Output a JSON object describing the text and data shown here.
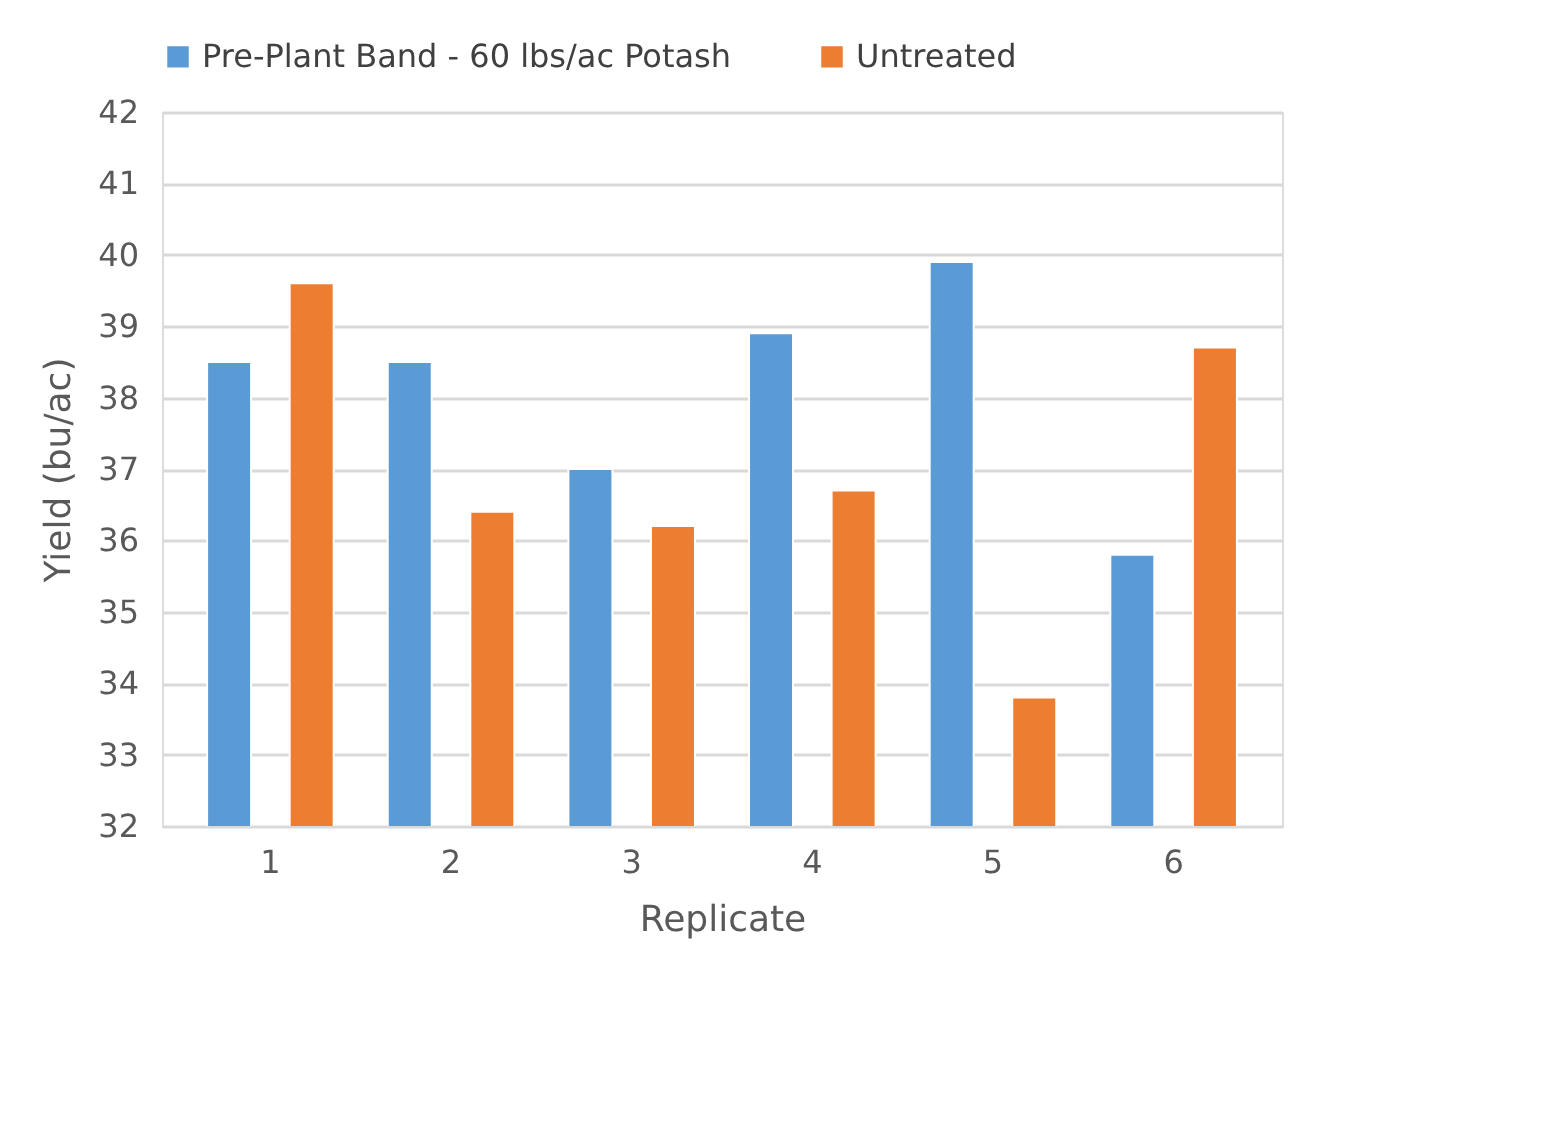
{
  "chart_data": {
    "type": "bar",
    "xlabel": "Replicate",
    "ylabel": "Yield (bu/ac)",
    "categories": [
      "1",
      "2",
      "3",
      "4",
      "5",
      "6"
    ],
    "series": [
      {
        "name": "Pre-Plant Band - 60 lbs/ac Potash",
        "color": "#5b9bd5",
        "values": [
          38.5,
          38.5,
          37.0,
          38.9,
          39.9,
          35.8
        ]
      },
      {
        "name": "Untreated",
        "color": "#ed7d31",
        "values": [
          39.6,
          36.4,
          36.2,
          36.7,
          33.8,
          38.7
        ]
      }
    ],
    "ylim": [
      32,
      42
    ],
    "yticks": [
      32,
      33,
      34,
      35,
      36,
      37,
      38,
      39,
      40,
      41,
      42
    ],
    "grid": "y",
    "legend": "top"
  }
}
